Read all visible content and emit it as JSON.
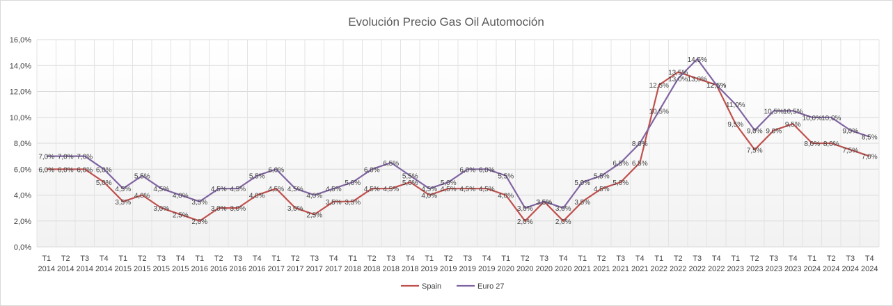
{
  "chart_data": {
    "type": "line",
    "title": "Evolución Precio Gas Oil Automoción",
    "xlabel": "",
    "ylabel": "",
    "ylim": [
      0,
      16
    ],
    "yticks": [
      "0,0%",
      "2,0%",
      "4,0%",
      "6,0%",
      "8,0%",
      "10,0%",
      "12,0%",
      "14,0%",
      "16,0%"
    ],
    "categories": [
      [
        "T1",
        "2014"
      ],
      [
        "T2",
        "2014"
      ],
      [
        "T3",
        "2014"
      ],
      [
        "T4",
        "2014"
      ],
      [
        "T1",
        "2015"
      ],
      [
        "T2",
        "2015"
      ],
      [
        "T3",
        "2015"
      ],
      [
        "T4",
        "2015"
      ],
      [
        "T1",
        "2016"
      ],
      [
        "T2",
        "2016"
      ],
      [
        "T3",
        "2016"
      ],
      [
        "T4",
        "2016"
      ],
      [
        "T1",
        "2017"
      ],
      [
        "T2",
        "2017"
      ],
      [
        "T3",
        "2017"
      ],
      [
        "T4",
        "2017"
      ],
      [
        "T1",
        "2018"
      ],
      [
        "T2",
        "2018"
      ],
      [
        "T3",
        "2018"
      ],
      [
        "T4",
        "2018"
      ],
      [
        "T1",
        "2019"
      ],
      [
        "T2",
        "2019"
      ],
      [
        "T3",
        "2019"
      ],
      [
        "T4",
        "2019"
      ],
      [
        "T1",
        "2020"
      ],
      [
        "T2",
        "2020"
      ],
      [
        "T3",
        "2020"
      ],
      [
        "T4",
        "2020"
      ],
      [
        "T1",
        "2021"
      ],
      [
        "T2",
        "2021"
      ],
      [
        "T3",
        "2021"
      ],
      [
        "T4",
        "2021"
      ],
      [
        "T1",
        "2022"
      ],
      [
        "T2",
        "2022"
      ],
      [
        "T3",
        "2022"
      ],
      [
        "T4",
        "2022"
      ],
      [
        "T1",
        "2023"
      ],
      [
        "T2",
        "2023"
      ],
      [
        "T3",
        "2023"
      ],
      [
        "T4",
        "2023"
      ],
      [
        "T1",
        "2024"
      ],
      [
        "T2",
        "2024"
      ],
      [
        "T3",
        "2024"
      ],
      [
        "T4",
        "2024"
      ]
    ],
    "series": [
      {
        "name": "Spain",
        "color": "#c0504d",
        "values": [
          6.0,
          6.0,
          6.0,
          5.0,
          3.5,
          4.0,
          3.0,
          2.5,
          2.0,
          3.0,
          3.0,
          4.0,
          4.5,
          3.0,
          2.5,
          3.5,
          3.5,
          4.5,
          4.5,
          5.0,
          4.0,
          4.5,
          4.5,
          4.5,
          4.0,
          2.0,
          3.5,
          2.0,
          3.5,
          4.5,
          5.0,
          6.5,
          12.5,
          13.5,
          13.0,
          12.5,
          9.5,
          7.5,
          9.0,
          9.5,
          8.0,
          8.0,
          7.5,
          7.0
        ],
        "labels": [
          "6,0%",
          "6,0%",
          "6,0%",
          "5,0%",
          "3,5%",
          "4,0%",
          "3,0%",
          "2,5%",
          "2,0%",
          "3,0%",
          "3,0%",
          "4,0%",
          "4,5%",
          "3,0%",
          "2,5%",
          "3,5%",
          "3,5%",
          "4,5%",
          "4,5%",
          "5,0%",
          "4,0%",
          "4,5%",
          "4,5%",
          "4,5%",
          "4,0%",
          "2,0%",
          "3,5%",
          "2,0%",
          "3,5%",
          "4,5%",
          "5,0%",
          "6,5%",
          "12,5%",
          "13,5%",
          "13,0%",
          "12,5%",
          "9,5%",
          "7,5%",
          "9,0%",
          "9,5%",
          "8,0%",
          "8,0%",
          "7,5%",
          "7,0%"
        ]
      },
      {
        "name": "Euro 27",
        "color": "#8064a2",
        "values": [
          7.0,
          7.0,
          7.0,
          6.0,
          4.5,
          5.5,
          4.5,
          4.0,
          3.5,
          4.5,
          4.5,
          5.5,
          6.0,
          4.5,
          4.0,
          4.5,
          5.0,
          6.0,
          6.5,
          5.5,
          4.5,
          5.0,
          6.0,
          6.0,
          5.5,
          3.0,
          3.5,
          3.0,
          5.0,
          5.5,
          6.5,
          8.0,
          10.5,
          13.0,
          14.5,
          12.5,
          11.0,
          9.0,
          10.5,
          10.5,
          10.0,
          10.0,
          9.0,
          8.5
        ],
        "labels": [
          "7,0%",
          "7,0%",
          "7,0%",
          "6,0%",
          "4,5%",
          "5,5%",
          "4,5%",
          "4,0%",
          "3,5%",
          "4,5%",
          "4,5%",
          "5,5%",
          "6,0%",
          "4,5%",
          "4,0%",
          "4,5%",
          "5,0%",
          "6,0%",
          "6,5%",
          "5,5%",
          "4,5%",
          "5,0%",
          "6,0%",
          "6,0%",
          "5,5%",
          "3,0%",
          "3,5%",
          "3,0%",
          "5,0%",
          "5,5%",
          "6,5%",
          "8,0%",
          "10,5%",
          "13,0%",
          "14,5%",
          "12,5%",
          "11,0%",
          "9,0%",
          "10,5%",
          "10,5%",
          "10,0%",
          "10,0%",
          "9,0%",
          "8,5%"
        ]
      }
    ],
    "grid": true,
    "legend_position": "bottom"
  }
}
